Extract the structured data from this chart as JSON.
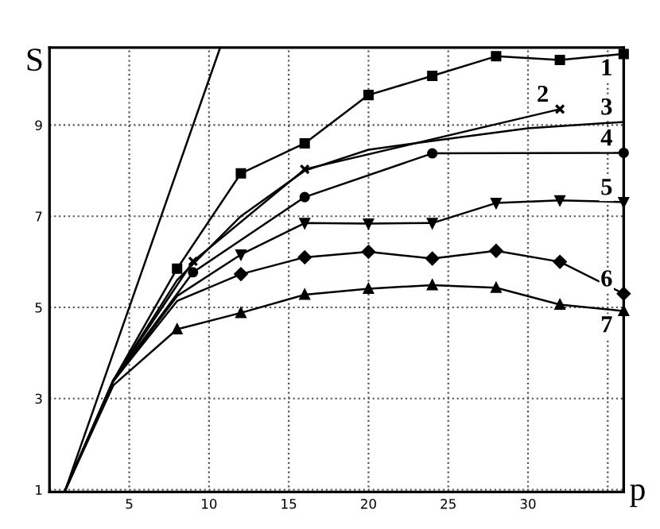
{
  "chart_data": {
    "type": "line",
    "xlabel": "p",
    "ylabel": "S",
    "xlim": [
      0,
      36
    ],
    "ylim": [
      0.95,
      10.7
    ],
    "xticks": [
      5,
      10,
      15,
      20,
      25,
      30,
      {
        "value": 35,
        "label": null
      }
    ],
    "yticks": [
      1,
      3,
      5,
      7,
      9
    ],
    "grid": true,
    "line_style": "solid",
    "legend": false,
    "series": [
      {
        "color": "#000000",
        "marker": "none",
        "x": [
          1,
          10.7
        ],
        "values": [
          1,
          10.7
        ]
      },
      {
        "name": "1",
        "color": "#000000",
        "marker": "square",
        "x": [
          1,
          4,
          8,
          12,
          16,
          20,
          24,
          28,
          32,
          36
        ],
        "values": [
          1,
          3.4,
          5.85,
          7.94,
          8.6,
          9.66,
          10.08,
          10.51,
          10.43,
          10.56
        ]
      },
      {
        "name": "2",
        "color": "#000000",
        "marker": "cross",
        "x": [
          1,
          4,
          9,
          16,
          32
        ],
        "values": [
          1,
          3.4,
          6.01,
          8.03,
          9.35
        ]
      },
      {
        "name": "3",
        "color": "#000000",
        "marker": "none",
        "x": [
          1,
          4,
          8,
          12,
          16,
          20,
          25,
          30,
          36
        ],
        "values": [
          1,
          3.4,
          5.6,
          7.0,
          8.0,
          8.46,
          8.7,
          8.93,
          9.07
        ]
      },
      {
        "name": "4",
        "color": "#000000",
        "marker": "circle",
        "x": [
          1,
          4,
          9,
          16,
          24,
          36
        ],
        "values": [
          1,
          3.4,
          5.77,
          7.42,
          8.38,
          8.39
        ]
      },
      {
        "name": "5",
        "color": "#000000",
        "marker": "triangle_down",
        "x": [
          1,
          4,
          8,
          12,
          16,
          20,
          24,
          28,
          32,
          36
        ],
        "values": [
          1,
          3.38,
          5.25,
          6.16,
          6.85,
          6.84,
          6.85,
          7.29,
          7.35,
          7.31
        ]
      },
      {
        "name": "6",
        "color": "#000000",
        "marker": "diamond",
        "x": [
          1,
          4,
          8,
          12,
          16,
          20,
          24,
          28,
          32,
          36
        ],
        "values": [
          1,
          3.38,
          5.14,
          5.73,
          6.1,
          6.22,
          6.07,
          6.24,
          6.0,
          5.3
        ]
      },
      {
        "name": "7",
        "color": "#000000",
        "marker": "triangle",
        "x": [
          1,
          4,
          8,
          12,
          16,
          20,
          24,
          28,
          32,
          36
        ],
        "values": [
          1,
          3.29,
          4.52,
          4.88,
          5.28,
          5.41,
          5.49,
          5.43,
          5.06,
          4.92
        ]
      }
    ]
  }
}
